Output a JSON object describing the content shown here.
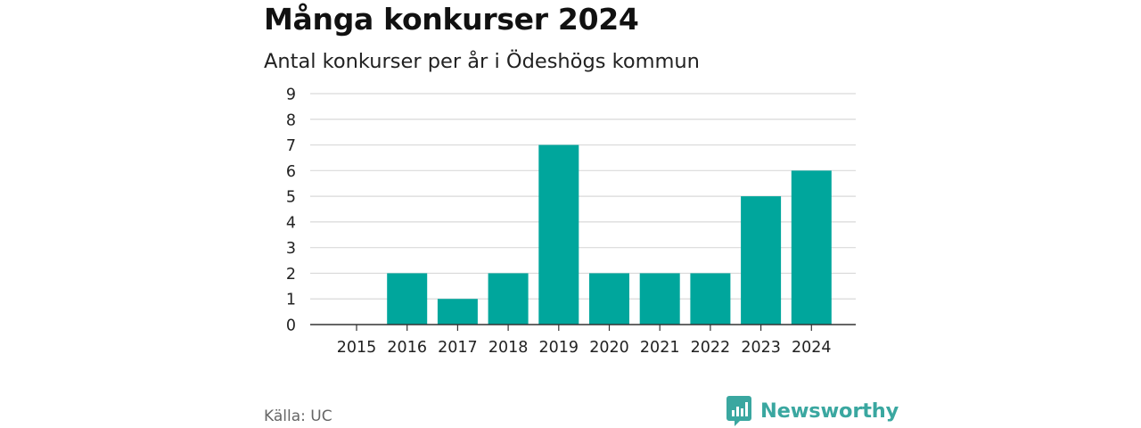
{
  "title": "Många konkurser 2024",
  "subtitle": "Antal konkurser per år i Ödeshögs kommun",
  "source": "Källa: UC",
  "brand": {
    "name": "Newsworthy",
    "icon": "newsworthy-logo-icon",
    "color": "#3aa7a0"
  },
  "colors": {
    "bar": "#00a69c",
    "grid": "#d9d9d9",
    "axis": "#333333"
  },
  "chart_data": {
    "type": "bar",
    "categories": [
      "2015",
      "2016",
      "2017",
      "2018",
      "2019",
      "2020",
      "2021",
      "2022",
      "2023",
      "2024"
    ],
    "values": [
      0,
      2,
      1,
      2,
      7,
      2,
      2,
      2,
      5,
      6
    ],
    "title": "Många konkurser 2024",
    "subtitle": "Antal konkurser per år i Ödeshögs kommun",
    "xlabel": "",
    "ylabel": "",
    "ylim": [
      0,
      9
    ],
    "yticks": [
      0,
      1,
      2,
      3,
      4,
      5,
      6,
      7,
      8,
      9
    ],
    "grid": true,
    "legend": "none"
  }
}
